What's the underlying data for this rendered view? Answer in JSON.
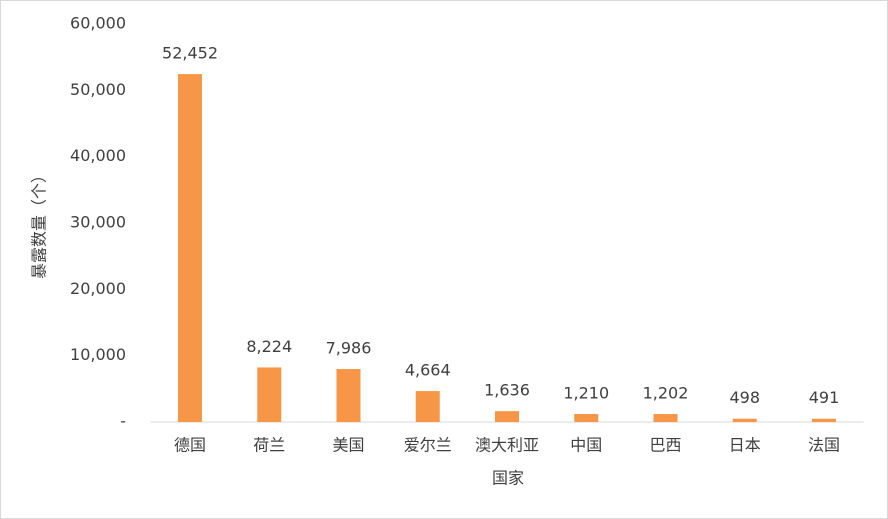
{
  "chart_data": {
    "type": "bar",
    "x_label": "国家",
    "y_label": "暴露数量（个）",
    "categories": [
      "德国",
      "荷兰",
      "美国",
      "爱尔兰",
      "澳大利亚",
      "中国",
      "巴西",
      "日本",
      "法国"
    ],
    "values": [
      52452,
      8224,
      7986,
      4664,
      1636,
      1210,
      1202,
      498,
      491
    ],
    "value_labels": [
      "52,452",
      "8,224",
      "7,986",
      "4,664",
      "1,636",
      "1,210",
      "1,202",
      "498",
      "491"
    ],
    "color": "#f79646",
    "ylim": [
      0,
      60000
    ],
    "yticks": [
      {
        "value": 0,
        "label": "-"
      },
      {
        "value": 10000,
        "label": "10,000"
      },
      {
        "value": 20000,
        "label": "20,000"
      },
      {
        "value": 30000,
        "label": "30,000"
      },
      {
        "value": 40000,
        "label": "40,000"
      },
      {
        "value": 50000,
        "label": "50,000"
      },
      {
        "value": 60000,
        "label": "60,000"
      }
    ],
    "grid": false
  }
}
